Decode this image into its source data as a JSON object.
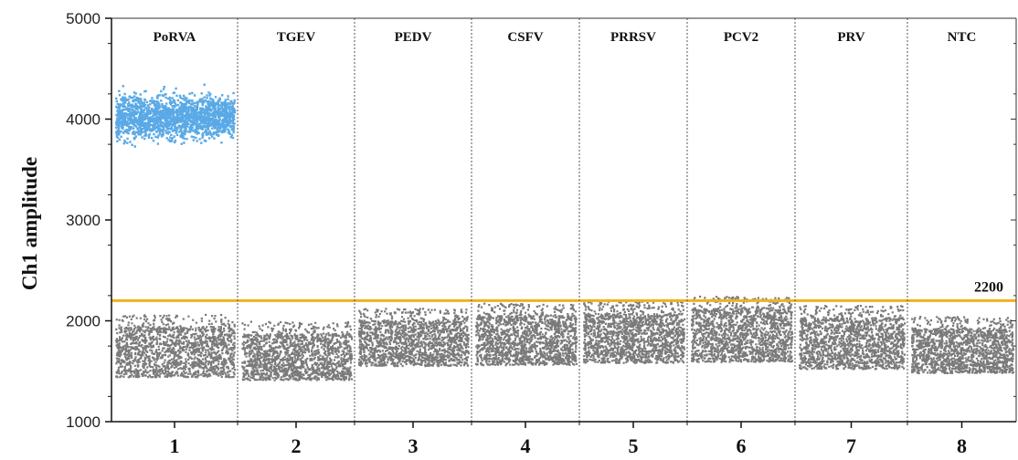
{
  "chart_data": {
    "type": "scatter",
    "ylabel": "Ch1 amplitude",
    "xlabel": "",
    "ylim": [
      1000,
      5000
    ],
    "yticks": [
      "1000",
      "2000",
      "3000",
      "4000",
      "5000"
    ],
    "threshold": {
      "value": 2200,
      "label": "2200",
      "color": "#f2b01e"
    },
    "colors": {
      "positive": "#5aa9e6",
      "negative": "#7a7a7a"
    },
    "wells": [
      {
        "number": "1",
        "target": "PoRVA",
        "positive": {
          "center": 4030,
          "spread": 260
        },
        "negative": {
          "min": 1450,
          "max": 1950
        }
      },
      {
        "number": "2",
        "target": "TGEV",
        "positive": null,
        "negative": {
          "min": 1420,
          "max": 1880
        }
      },
      {
        "number": "3",
        "target": "PEDV",
        "positive": null,
        "negative": {
          "min": 1560,
          "max": 2010
        }
      },
      {
        "number": "4",
        "target": "CSFV",
        "positive": null,
        "negative": {
          "min": 1570,
          "max": 2060
        }
      },
      {
        "number": "5",
        "target": "PRRSV",
        "positive": null,
        "negative": {
          "min": 1590,
          "max": 2080
        }
      },
      {
        "number": "6",
        "target": "PCV2",
        "positive": null,
        "negative": {
          "min": 1600,
          "max": 2130
        }
      },
      {
        "number": "7",
        "target": "PRV",
        "positive": null,
        "negative": {
          "min": 1530,
          "max": 2040
        }
      },
      {
        "number": "8",
        "target": "NTC",
        "positive": null,
        "negative": {
          "min": 1490,
          "max": 1930
        }
      }
    ]
  }
}
